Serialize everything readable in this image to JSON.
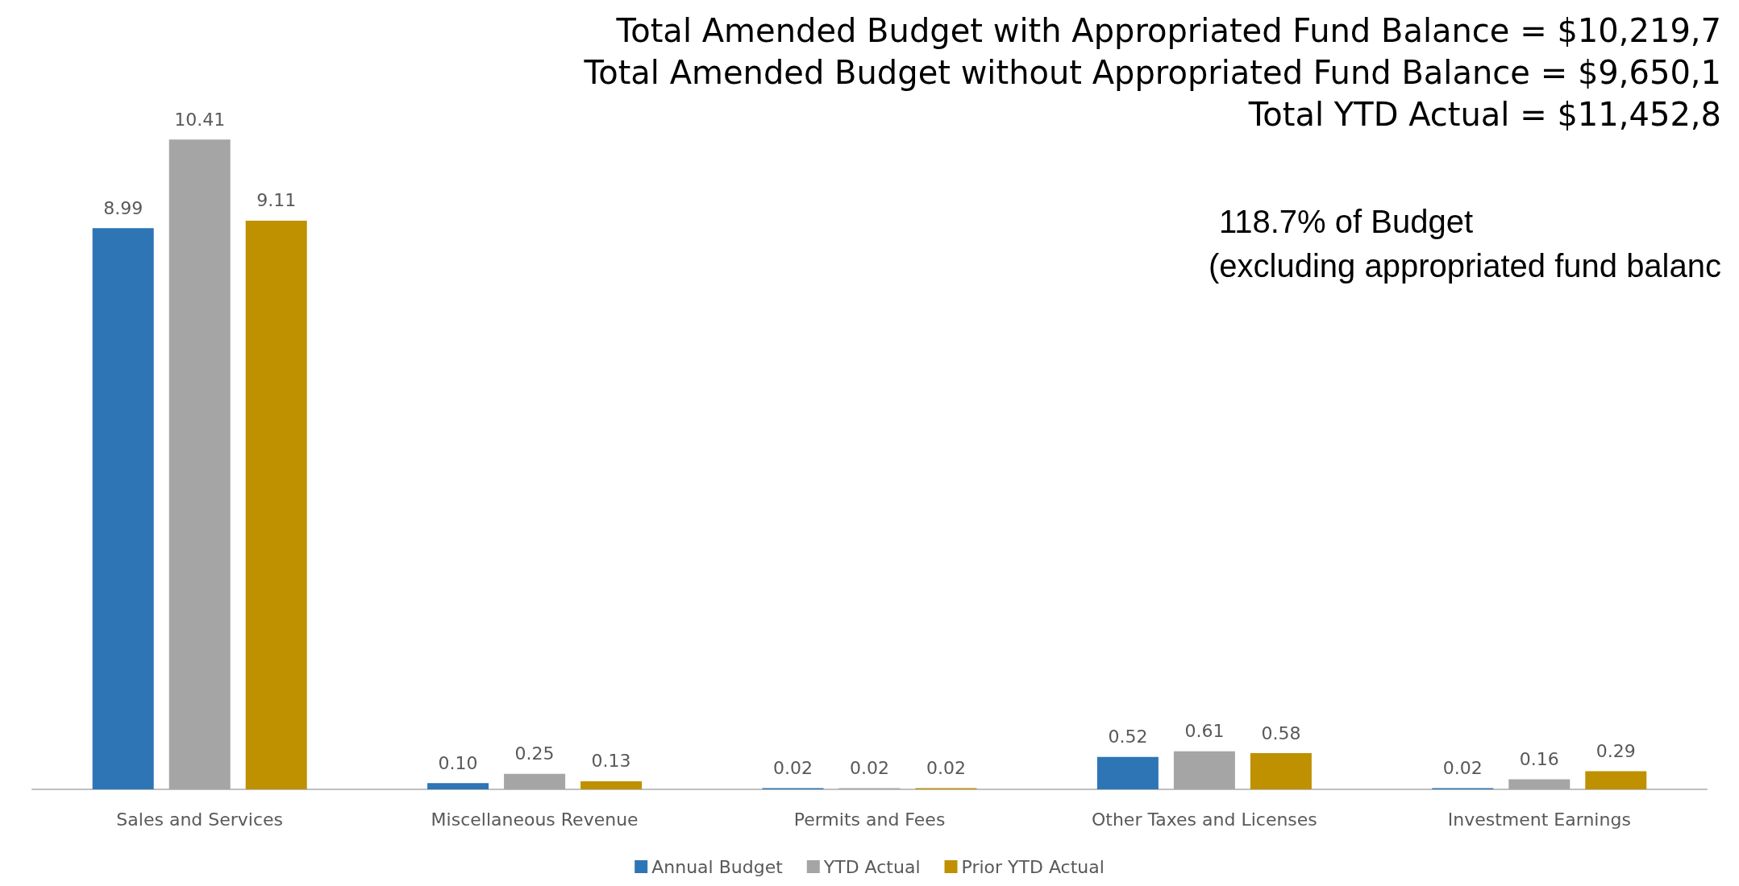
{
  "chart_data": {
    "type": "bar",
    "categories": [
      "Sales and Services",
      "Miscellaneous Revenue",
      "Permits and Fees",
      "Other Taxes and Licenses",
      "Investment Earnings"
    ],
    "series": [
      {
        "name": "Annual Budget",
        "color": "#2e75b6",
        "values": [
          8.99,
          0.1,
          0.02,
          0.52,
          0.02
        ],
        "value_labels": [
          "8.99",
          "0.10",
          "0.02",
          "0.52",
          "0.02"
        ]
      },
      {
        "name": "YTD Actual",
        "color": "#a5a5a5",
        "values": [
          10.41,
          0.25,
          0.02,
          0.61,
          0.16
        ],
        "value_labels": [
          "10.41",
          "0.25",
          "0.02",
          "0.61",
          "0.16"
        ]
      },
      {
        "name": "Prior YTD Actual",
        "color": "#bf9000",
        "values": [
          9.11,
          0.13,
          0.02,
          0.58,
          0.29
        ],
        "value_labels": [
          "9.11",
          "0.13",
          "0.02",
          "0.58",
          "0.29"
        ]
      }
    ],
    "annotations": [
      "Total Amended Budget with Appropriated Fund Balance = $10,219,7",
      "Total Amended Budget without Appropriated Fund Balance = $9,650,1",
      "Total YTD Actual = $11,452,8",
      "118.7% of Budget",
      "(excluding appropriated fund balanc"
    ],
    "legend": "bottom"
  }
}
